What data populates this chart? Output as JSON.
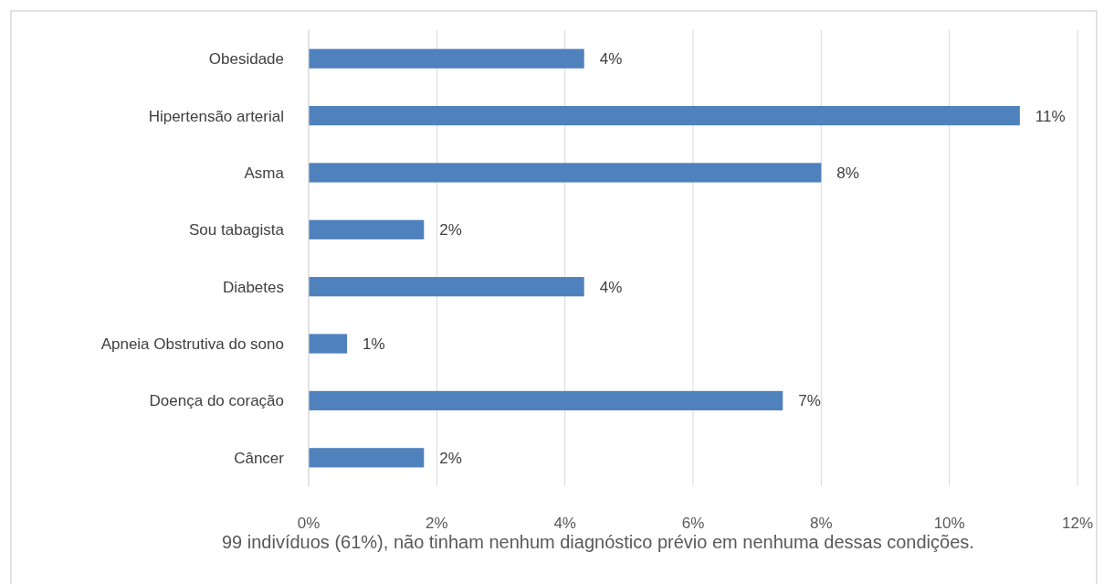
{
  "chart_data": {
    "type": "bar",
    "orientation": "horizontal",
    "categories": [
      "Obesidade",
      "Hipertensão arterial",
      "Asma",
      "Sou tabagista",
      "Diabetes",
      "Apneia Obstrutiva do sono",
      "Doença do coração",
      "Câncer"
    ],
    "values": [
      4.3,
      11.1,
      8.0,
      1.8,
      4.3,
      0.6,
      7.4,
      1.8
    ],
    "value_labels": [
      "4%",
      "11%",
      "8%",
      "2%",
      "4%",
      "1%",
      "7%",
      "2%"
    ],
    "color": "#4f81bd",
    "xlim": [
      0,
      12
    ],
    "xticks": [
      {
        "value": 0,
        "label": "0%"
      },
      {
        "value": 2,
        "label": "2%"
      },
      {
        "value": 4,
        "label": "4%"
      },
      {
        "value": 6,
        "label": "6%"
      },
      {
        "value": 8,
        "label": "8%"
      },
      {
        "value": 10,
        "label": "10%"
      },
      {
        "value": 12,
        "label": "12%"
      }
    ],
    "grid": "x",
    "annotations": [
      "99 indivíduos (61%), não tinham nenhum diagnóstico prévio em nenhuma dessas condições."
    ]
  }
}
